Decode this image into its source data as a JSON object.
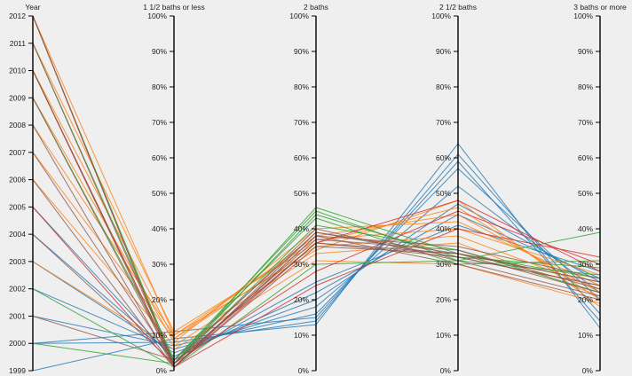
{
  "chart_data": {
    "type": "parallel-coordinates",
    "axes": [
      {
        "key": "year",
        "label": "Year",
        "ticks": [
          "1999",
          "2000",
          "2001",
          "2002",
          "2003",
          "2004",
          "2005",
          "2006",
          "2007",
          "2008",
          "2009",
          "2010",
          "2011",
          "2012"
        ],
        "range": [
          1999,
          2012
        ]
      },
      {
        "key": "b15",
        "label": "1 1/2 baths or less",
        "ticks": [
          "0%",
          "10%",
          "20%",
          "30%",
          "40%",
          "50%",
          "60%",
          "70%",
          "80%",
          "90%",
          "100%"
        ],
        "range": [
          0,
          100
        ]
      },
      {
        "key": "b2",
        "label": "2 baths",
        "ticks": [
          "0%",
          "10%",
          "20%",
          "30%",
          "40%",
          "50%",
          "60%",
          "70%",
          "80%",
          "90%",
          "100%"
        ],
        "range": [
          0,
          100
        ]
      },
      {
        "key": "b25",
        "label": "2 1/2 baths",
        "ticks": [
          "0%",
          "10%",
          "20%",
          "30%",
          "40%",
          "50%",
          "60%",
          "70%",
          "80%",
          "90%",
          "100%"
        ],
        "range": [
          0,
          100
        ]
      },
      {
        "key": "b3",
        "label": "3 baths or more",
        "ticks": [
          "0%",
          "10%",
          "20%",
          "30%",
          "40%",
          "50%",
          "60%",
          "70%",
          "80%",
          "90%",
          "100%"
        ],
        "range": [
          0,
          100
        ]
      }
    ],
    "series": [
      {
        "color": "#1f77b4",
        "values": [
          1999,
          9,
          13,
          64,
          12
        ]
      },
      {
        "color": "#1f77b4",
        "values": [
          2000,
          8,
          14,
          61,
          16
        ]
      },
      {
        "color": "#1f77b4",
        "values": [
          2001,
          7,
          16,
          57,
          20
        ]
      },
      {
        "color": "#1f77b4",
        "values": [
          2002,
          6,
          18,
          52,
          22
        ]
      },
      {
        "color": "#1f77b4",
        "values": [
          2003,
          5,
          20,
          47,
          25
        ]
      },
      {
        "color": "#1f77b4",
        "values": [
          2004,
          4,
          22,
          44,
          26
        ]
      },
      {
        "color": "#1f77b4",
        "values": [
          2005,
          3,
          25,
          41,
          28
        ]
      },
      {
        "color": "#1f77b4",
        "values": [
          2000,
          11,
          15,
          59,
          14
        ]
      },
      {
        "color": "#ff7f0e",
        "values": [
          2012,
          10,
          34,
          48,
          18
        ]
      },
      {
        "color": "#ff7f0e",
        "values": [
          2011,
          11,
          36,
          46,
          20
        ]
      },
      {
        "color": "#ff7f0e",
        "values": [
          2010,
          9,
          38,
          44,
          22
        ]
      },
      {
        "color": "#ff7f0e",
        "values": [
          2009,
          8,
          40,
          42,
          24
        ]
      },
      {
        "color": "#ff7f0e",
        "values": [
          2008,
          10,
          37,
          40,
          27
        ]
      },
      {
        "color": "#ff7f0e",
        "values": [
          2007,
          9,
          35,
          38,
          23
        ]
      },
      {
        "color": "#ff7f0e",
        "values": [
          2006,
          7,
          33,
          36,
          21
        ]
      },
      {
        "color": "#ff7f0e",
        "values": [
          2003,
          6,
          31,
          30,
          19
        ]
      },
      {
        "color": "#2ca02c",
        "values": [
          2012,
          2,
          46,
          33,
          26
        ]
      },
      {
        "color": "#2ca02c",
        "values": [
          2011,
          3,
          45,
          31,
          27
        ]
      },
      {
        "color": "#2ca02c",
        "values": [
          2010,
          2,
          44,
          32,
          29
        ]
      },
      {
        "color": "#2ca02c",
        "values": [
          2009,
          3,
          43,
          30,
          31
        ]
      },
      {
        "color": "#2ca02c",
        "values": [
          2002,
          1,
          30,
          31,
          39
        ]
      },
      {
        "color": "#2ca02c",
        "values": [
          2000,
          2,
          41,
          34,
          22
        ]
      },
      {
        "color": "#d62728",
        "values": [
          2012,
          1,
          36,
          48,
          28
        ]
      },
      {
        "color": "#d62728",
        "values": [
          2010,
          2,
          28,
          45,
          30
        ]
      },
      {
        "color": "#d62728",
        "values": [
          2005,
          1,
          24,
          40,
          32
        ]
      },
      {
        "color": "#8c564b",
        "values": [
          2012,
          1,
          38,
          35,
          26
        ]
      },
      {
        "color": "#8c564b",
        "values": [
          2011,
          2,
          36,
          33,
          25
        ]
      },
      {
        "color": "#8c564b",
        "values": [
          2010,
          1,
          39,
          32,
          24
        ]
      },
      {
        "color": "#8c564b",
        "values": [
          2009,
          2,
          37,
          34,
          23
        ]
      },
      {
        "color": "#8c564b",
        "values": [
          2008,
          1,
          35,
          33,
          22
        ]
      },
      {
        "color": "#8c564b",
        "values": [
          2007,
          2,
          40,
          31,
          21
        ]
      },
      {
        "color": "#8c564b",
        "values": [
          2006,
          1,
          38,
          30,
          20
        ]
      },
      {
        "color": "#8c564b",
        "values": [
          2004,
          2,
          36,
          32,
          24
        ]
      },
      {
        "color": "#8c564b",
        "values": [
          2001,
          3,
          39,
          33,
          25
        ]
      }
    ]
  }
}
